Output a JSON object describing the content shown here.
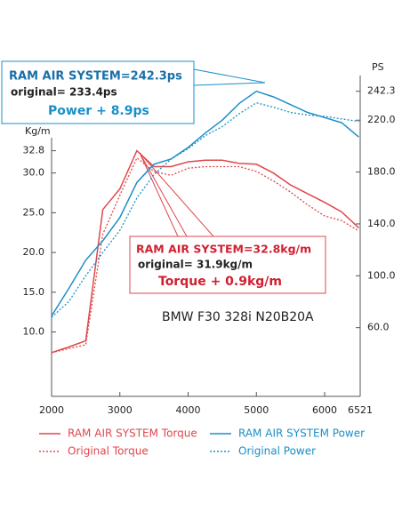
{
  "chart_data": {
    "type": "line",
    "note": "BMW F30 328i N20B20A",
    "ylabel": "Kg/m",
    "y2label": "PS",
    "annotations": {
      "power": [
        "RAM AIR SYSTEM=242.3ps",
        "original=  233.4ps",
        "Power  + 8.9ps"
      ],
      "torque": [
        "RAM AIR SYSTEM=32.8kg/m",
        "original=  31.9kg/m",
        "Torque  + 0.9kg/m"
      ]
    },
    "x": [
      2000,
      2250,
      2500,
      2750,
      3000,
      3250,
      3500,
      3750,
      4000,
      4250,
      4500,
      4750,
      5000,
      5250,
      5500,
      5750,
      6000,
      6250,
      6500
    ],
    "xlim": [
      2000,
      6521
    ],
    "xticks": [
      2000,
      3000,
      4000,
      5000,
      6000,
      6521
    ],
    "ylim": [
      1.9,
      41.7
    ],
    "yticks": [
      {
        "value": 10,
        "label": "10.0"
      },
      {
        "value": 15,
        "label": "15.0"
      },
      {
        "value": 20,
        "label": "20.0"
      },
      {
        "value": 25,
        "label": "25.0"
      },
      {
        "value": 30,
        "label": "30.0"
      },
      32.8
    ],
    "y2lim": [
      7,
      251
    ],
    "y2ticks": [
      {
        "value": 60,
        "label": "60.0"
      },
      {
        "value": 100,
        "label": "100.0"
      },
      {
        "value": 140,
        "label": "140.0"
      },
      {
        "value": 180,
        "label": "180.0"
      },
      {
        "value": 220,
        "label": "220.0"
      },
      242.3
    ],
    "series": [
      {
        "name": "RAM AIR SYSTEM Torque",
        "color": "#e0474c",
        "style": "solid",
        "values": [
          7.4,
          8.1,
          8.9,
          25.4,
          28,
          32.8,
          30.8,
          30.8,
          31.4,
          31.6,
          31.6,
          31.2,
          31.1,
          30,
          28.5,
          27.4,
          26.3,
          25.1,
          23.1
        ]
      },
      {
        "name": "Original Torque",
        "color": "#e0474c",
        "style": "dotted",
        "values": [
          7.4,
          7.9,
          8.4,
          22.3,
          27.2,
          31.9,
          30.2,
          29.7,
          30.6,
          30.8,
          30.8,
          30.8,
          30.2,
          29,
          27.6,
          26,
          24.6,
          24,
          22.7
        ]
      },
      {
        "name": "RAM AIR SYSTEM Power",
        "color": "#1a8fc8",
        "style": "solid",
        "axis": "y2",
        "values": [
          69,
          90,
          112,
          127,
          145,
          172,
          186,
          190,
          199,
          210,
          220,
          233,
          242.3,
          238,
          232,
          226,
          222,
          218,
          207
        ]
      },
      {
        "name": "Original Power",
        "color": "#1a8fc8",
        "style": "dotted",
        "axis": "y2",
        "values": [
          68,
          80,
          100,
          118,
          135,
          160,
          178,
          190,
          198,
          208,
          215,
          225,
          233.4,
          230,
          226,
          224,
          223,
          221,
          219
        ]
      }
    ]
  }
}
